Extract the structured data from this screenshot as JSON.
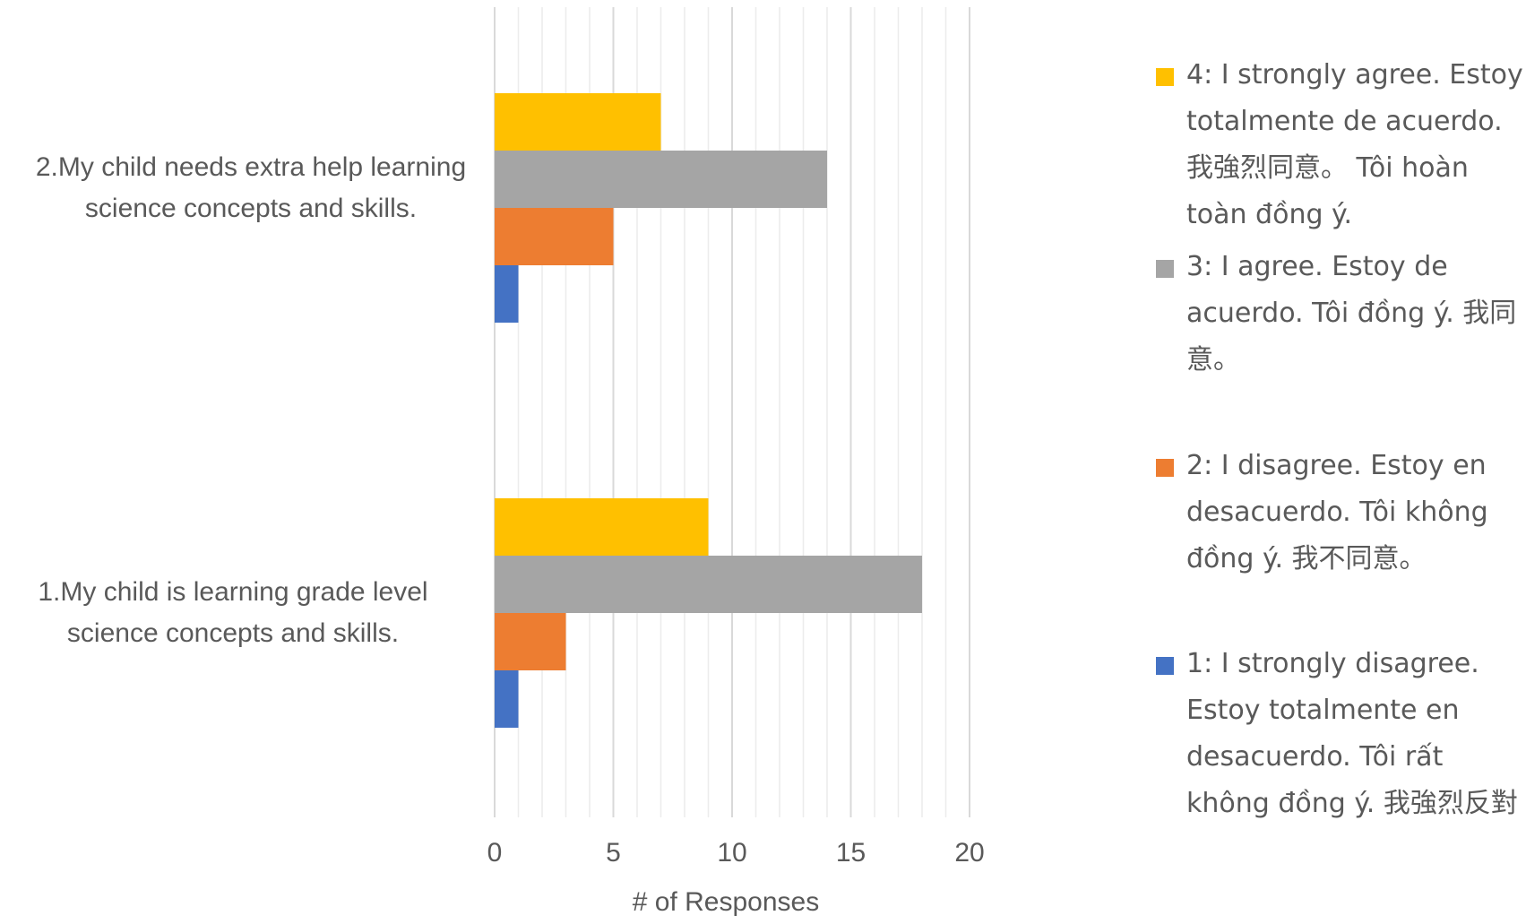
{
  "chart_data": {
    "type": "bar",
    "orientation": "horizontal",
    "categories": [
      "1.My child is learning grade level science concepts and skills.",
      "2.My child needs extra help learning science concepts and skills."
    ],
    "series": [
      {
        "name": "1: I strongly disagree. Estoy totalmente en desacuerdo. Tôi rất không đồng ý. 我強烈反對",
        "color": "#4472C4",
        "values": [
          1,
          1
        ]
      },
      {
        "name": "2: I disagree. Estoy en desacuerdo.  Tôi không đồng ý.  我不同意。",
        "color": "#ED7D31",
        "values": [
          3,
          5
        ]
      },
      {
        "name": "3: I agree. Estoy de acuerdo. Tôi đồng ý.  我同意。",
        "color": "#A5A5A5",
        "values": [
          18,
          14
        ]
      },
      {
        "name": "4: I strongly agree. Estoy totalmente de acuerdo. 我強烈同意。 Tôi hoàn toàn đồng ý.",
        "color": "#FFC000",
        "values": [
          9,
          7
        ]
      }
    ],
    "xlabel": "# of Responses",
    "ylabel": "",
    "xlim": [
      0,
      20
    ],
    "ticks": [
      "0",
      "5",
      "10",
      "15",
      "20"
    ],
    "grid": true,
    "legend": "right"
  }
}
